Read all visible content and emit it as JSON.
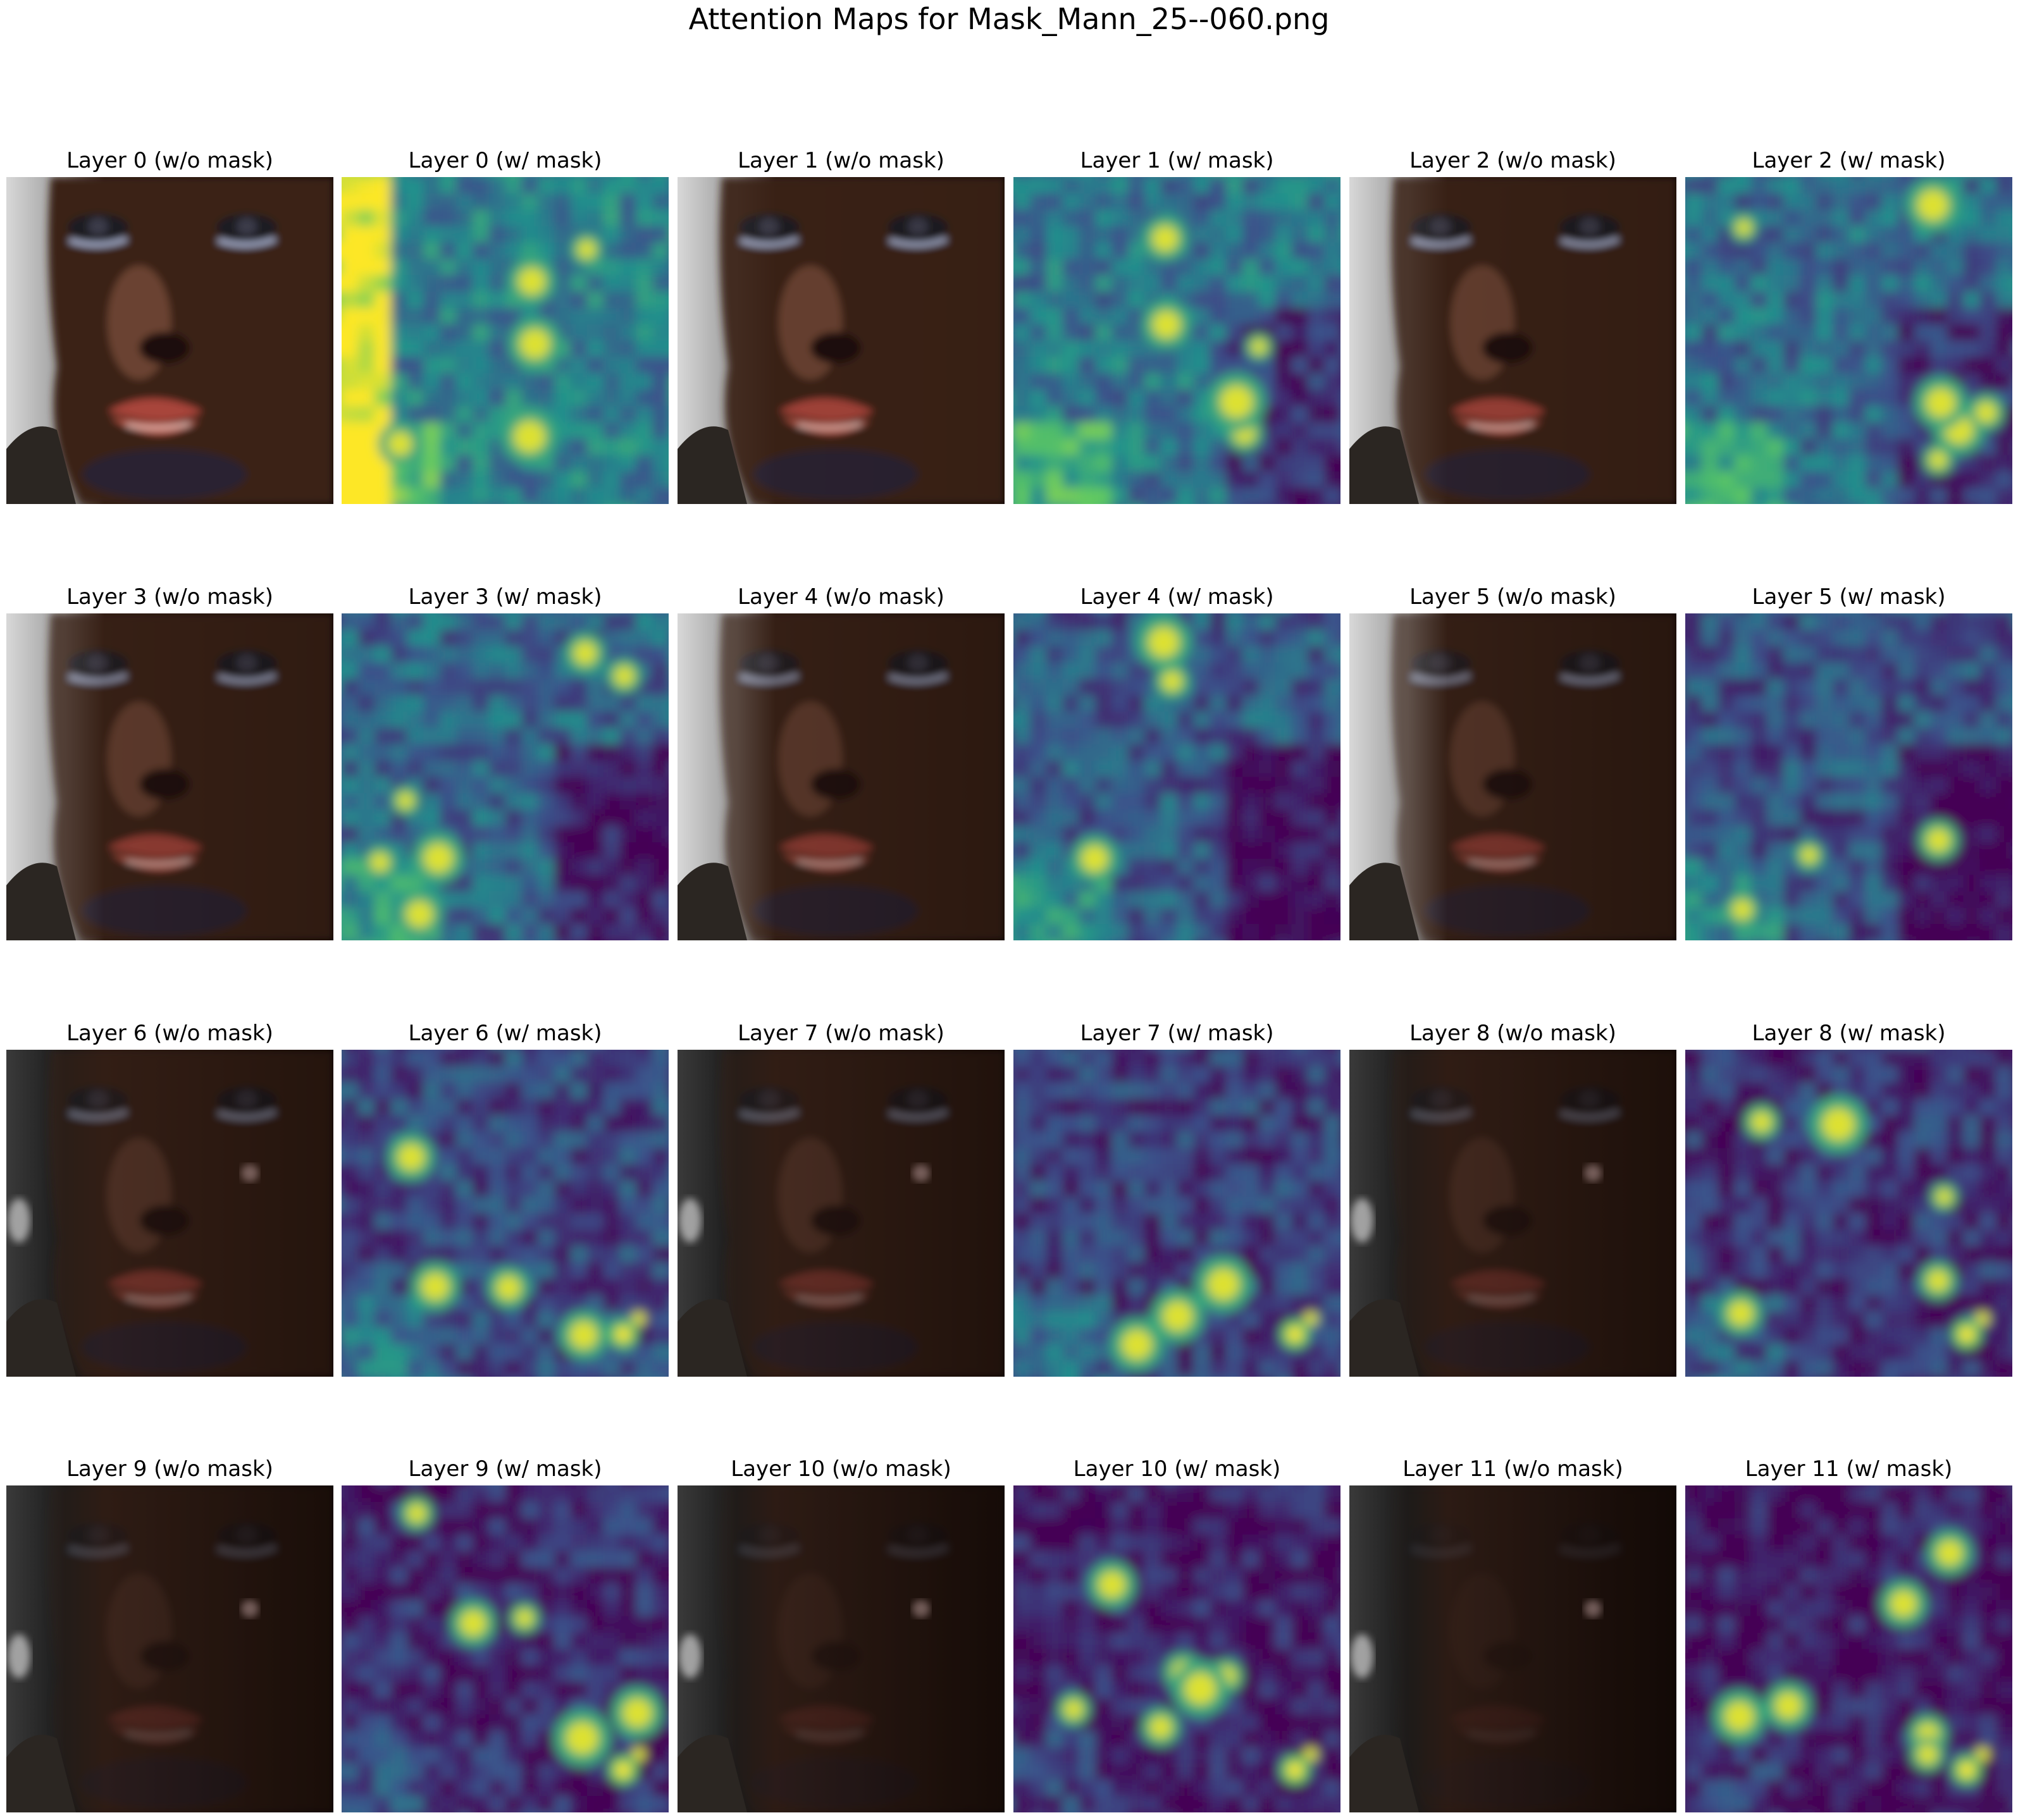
{
  "figure": {
    "title": "Attention Maps for Mask_Mann_25--060.png"
  },
  "panels": [
    {
      "label": "Layer 0 (w/o mask)",
      "kind": "face",
      "layer": 0
    },
    {
      "label": "Layer 0 (w/ mask)",
      "kind": "heatmap",
      "layer": 0
    },
    {
      "label": "Layer 1 (w/o mask)",
      "kind": "face",
      "layer": 1
    },
    {
      "label": "Layer 1 (w/ mask)",
      "kind": "heatmap",
      "layer": 1
    },
    {
      "label": "Layer 2 (w/o mask)",
      "kind": "face",
      "layer": 2
    },
    {
      "label": "Layer 2 (w/ mask)",
      "kind": "heatmap",
      "layer": 2
    },
    {
      "label": "Layer 3 (w/o mask)",
      "kind": "face",
      "layer": 3
    },
    {
      "label": "Layer 3 (w/ mask)",
      "kind": "heatmap",
      "layer": 3
    },
    {
      "label": "Layer 4 (w/o mask)",
      "kind": "face",
      "layer": 4
    },
    {
      "label": "Layer 4 (w/ mask)",
      "kind": "heatmap",
      "layer": 4
    },
    {
      "label": "Layer 5 (w/o mask)",
      "kind": "face",
      "layer": 5
    },
    {
      "label": "Layer 5 (w/ mask)",
      "kind": "heatmap",
      "layer": 5
    },
    {
      "label": "Layer 6 (w/o mask)",
      "kind": "face",
      "layer": 6
    },
    {
      "label": "Layer 6 (w/ mask)",
      "kind": "heatmap",
      "layer": 6
    },
    {
      "label": "Layer 7 (w/o mask)",
      "kind": "face",
      "layer": 7
    },
    {
      "label": "Layer 7 (w/ mask)",
      "kind": "heatmap",
      "layer": 7
    },
    {
      "label": "Layer 8 (w/o mask)",
      "kind": "face",
      "layer": 8
    },
    {
      "label": "Layer 8 (w/ mask)",
      "kind": "heatmap",
      "layer": 8
    },
    {
      "label": "Layer 9 (w/o mask)",
      "kind": "face",
      "layer": 9
    },
    {
      "label": "Layer 9 (w/ mask)",
      "kind": "heatmap",
      "layer": 9
    },
    {
      "label": "Layer 10 (w/o mask)",
      "kind": "face",
      "layer": 10
    },
    {
      "label": "Layer 10 (w/ mask)",
      "kind": "heatmap",
      "layer": 10
    },
    {
      "label": "Layer 11 (w/o mask)",
      "kind": "face",
      "layer": 11
    },
    {
      "label": "Layer 11 (w/ mask)",
      "kind": "heatmap",
      "layer": 11
    }
  ],
  "colors": {
    "viridis_low": "#440154",
    "viridis_mid": "#21918c",
    "viridis_high": "#fde725",
    "face_skin": "#3a261d",
    "face_lips": "#a8453b",
    "background": "#ffffff"
  }
}
